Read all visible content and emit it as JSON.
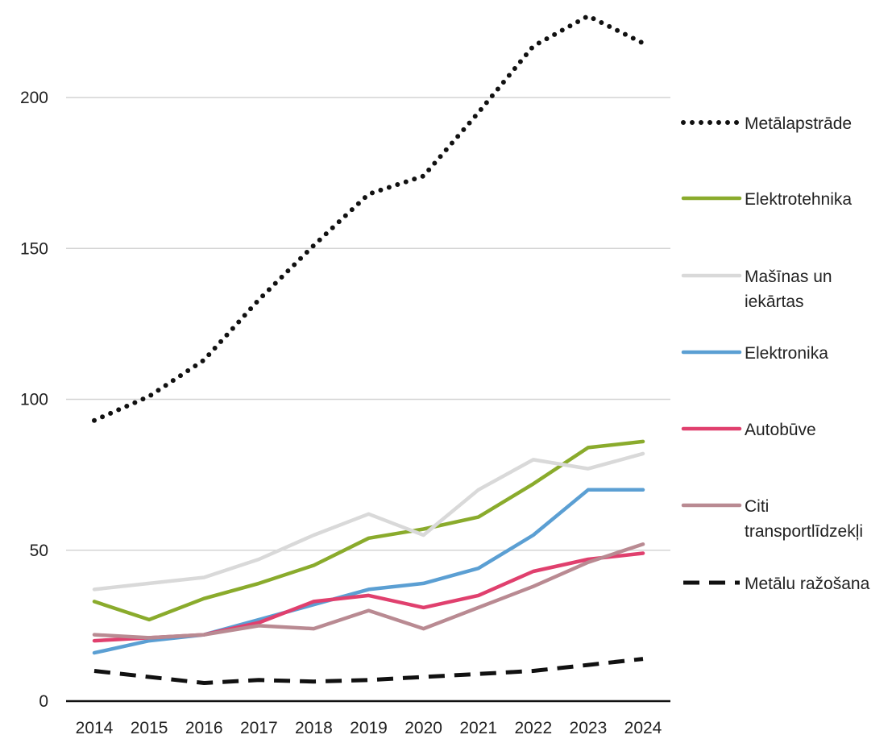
{
  "chart_data": {
    "type": "line",
    "title": "",
    "xlabel": "",
    "ylabel": "",
    "categories": [
      "2014",
      "2015",
      "2016",
      "2017",
      "2018",
      "2019",
      "2020",
      "2021",
      "2022",
      "2023",
      "2024"
    ],
    "yticks": [
      "0",
      "50",
      "100",
      "150",
      "200"
    ],
    "ylim": [
      0,
      230
    ],
    "grid": true,
    "legend_position": "right",
    "series": [
      {
        "name": "Metālapstrāde",
        "style": "dotted",
        "color": "#111111",
        "values": [
          93,
          101,
          113,
          133,
          151,
          168,
          174,
          195,
          217,
          227,
          218
        ]
      },
      {
        "name": "Elektrotehnika",
        "style": "solid",
        "color": "#8aab2c",
        "values": [
          33,
          27,
          34,
          39,
          45,
          54,
          57,
          61,
          72,
          84,
          86
        ]
      },
      {
        "name": "Mašīnas un iekārtas",
        "style": "solid",
        "color": "#d9d9d9",
        "values": [
          37,
          39,
          41,
          47,
          55,
          62,
          55,
          70,
          80,
          77,
          82
        ]
      },
      {
        "name": "Elektronika",
        "style": "solid",
        "color": "#5b9fd3",
        "values": [
          16,
          20,
          22,
          27,
          32,
          37,
          39,
          44,
          55,
          70,
          70
        ]
      },
      {
        "name": "Autobūve",
        "style": "solid",
        "color": "#e0406e",
        "values": [
          20,
          21,
          22,
          26,
          33,
          35,
          31,
          35,
          43,
          47,
          49
        ]
      },
      {
        "name": "Citi transportlīdzekļi",
        "style": "solid",
        "color": "#b98a92",
        "values": [
          22,
          21,
          22,
          25,
          24,
          30,
          24,
          31,
          38,
          46,
          52
        ]
      },
      {
        "name": "Metālu ražošana",
        "style": "dashed",
        "color": "#111111",
        "values": [
          10,
          8,
          6,
          7,
          6.5,
          7,
          8,
          9,
          10,
          12,
          14
        ]
      }
    ]
  }
}
